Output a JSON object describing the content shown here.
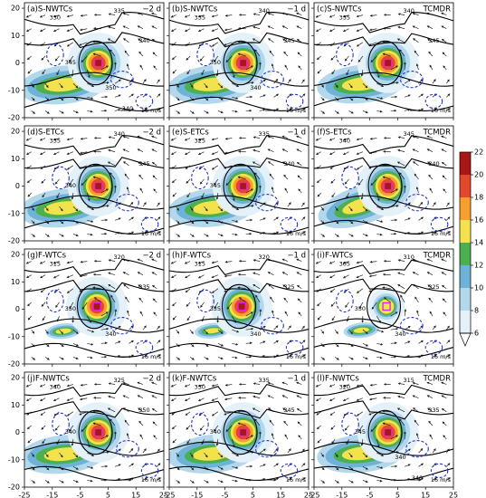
{
  "panels": [
    {
      "label": "(a)S-NWTCs",
      "time": "−2 d",
      "contour_labels": [
        "330",
        "335",
        "340",
        "345",
        "350",
        "340"
      ]
    },
    {
      "label": "(b)S-NWTCs",
      "time": "−1 d",
      "contour_labels": [
        "335",
        "340",
        "345",
        "350",
        "340"
      ]
    },
    {
      "label": "(c)S-NWTCs",
      "time": "TCMDR",
      "contour_labels": [
        "335",
        "340",
        "345"
      ]
    },
    {
      "label": "(d)S-ETCs",
      "time": "−2 d",
      "contour_labels": [
        "335",
        "340",
        "345",
        "340"
      ]
    },
    {
      "label": "(e)S-ETCs",
      "time": "−1 d",
      "contour_labels": [
        "325",
        "335",
        "340",
        "345"
      ]
    },
    {
      "label": "(f)S-ETCs",
      "time": "TCMDR",
      "contour_labels": [
        "340",
        "345",
        "340"
      ]
    },
    {
      "label": "(g)F-WTCs",
      "time": "−2 d",
      "contour_labels": [
        "315",
        "320",
        "335",
        "350",
        "340"
      ]
    },
    {
      "label": "(h)F-WTCs",
      "time": "−1 d",
      "contour_labels": [
        "315",
        "320",
        "325",
        "335",
        "340"
      ]
    },
    {
      "label": "(i)F-WTCs",
      "time": "TCMDR",
      "contour_labels": [
        "305",
        "310",
        "325",
        "330",
        "340"
      ]
    },
    {
      "label": "(j)F-NWTCs",
      "time": "−2 d",
      "contour_labels": [
        "340",
        "325",
        "350",
        "340"
      ]
    },
    {
      "label": "(k)F-NWTCs",
      "time": "−1 d",
      "contour_labels": [
        "330",
        "335",
        "345",
        "340"
      ]
    },
    {
      "label": "(l)F-NWTCs",
      "time": "TCMDR",
      "contour_labels": [
        "320",
        "315",
        "335",
        "345",
        "340",
        "340"
      ]
    }
  ],
  "xlim": [
    -25,
    25
  ],
  "xticks": [
    -25,
    -15,
    -5,
    5,
    15,
    25
  ],
  "ylim": [
    -20,
    22
  ],
  "yticks": [
    -20,
    -10,
    0,
    10,
    20
  ],
  "vector_key": "16 m/s",
  "colorbar": {
    "ticks": [
      6,
      8,
      10,
      12,
      14,
      16,
      18,
      20,
      22
    ],
    "colors": [
      "#e4f1f9",
      "#b3d8ec",
      "#6fb2d8",
      "#4caf50",
      "#f2e24b",
      "#f5a02c",
      "#e4472b",
      "#a81616"
    ]
  }
}
